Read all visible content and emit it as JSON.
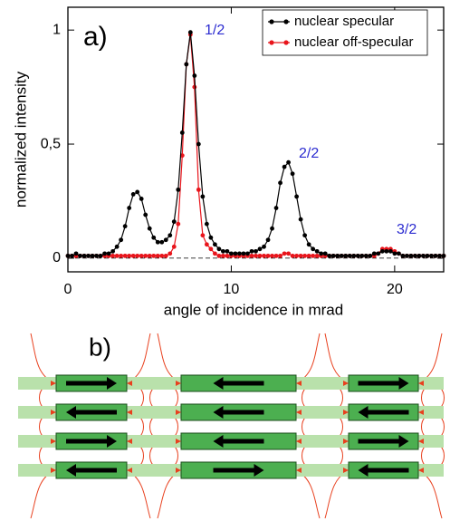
{
  "chart_data": {
    "type": "line",
    "panel_label": "a)",
    "x_label": "angle of incidence in mrad",
    "y_label": "normalized intensity",
    "xlim": [
      0,
      23
    ],
    "xticks": [
      0,
      10,
      20
    ],
    "ylim": [
      -0.06,
      1.1
    ],
    "yticks": [
      0,
      {
        "value": 0.5,
        "label": "0,5"
      },
      1
    ],
    "legend": "upper right",
    "annotations": [
      "1/2",
      "2/2",
      "3/2"
    ],
    "x": [
      0,
      0.25,
      0.5,
      0.75,
      1,
      1.25,
      1.5,
      1.75,
      2,
      2.25,
      2.5,
      2.75,
      3,
      3.25,
      3.5,
      3.75,
      4,
      4.25,
      4.5,
      4.75,
      5,
      5.25,
      5.5,
      5.75,
      6,
      6.25,
      6.5,
      6.75,
      7,
      7.25,
      7.5,
      7.75,
      8,
      8.25,
      8.5,
      8.75,
      9,
      9.25,
      9.5,
      9.75,
      10,
      10.25,
      10.5,
      10.75,
      11,
      11.25,
      11.5,
      11.75,
      12,
      12.25,
      12.5,
      12.75,
      13,
      13.25,
      13.5,
      13.75,
      14,
      14.25,
      14.5,
      14.75,
      15,
      15.25,
      15.5,
      15.75,
      16,
      16.25,
      16.5,
      16.75,
      17,
      17.25,
      17.5,
      17.75,
      18,
      18.25,
      18.5,
      18.75,
      19,
      19.25,
      19.5,
      19.75,
      20,
      20.25,
      20.5,
      20.75,
      21,
      21.25,
      21.5,
      21.75,
      22,
      22.25,
      22.5,
      22.75,
      23
    ],
    "series": [
      {
        "name": "nuclear specular",
        "color": "#000000",
        "values": [
          0.01,
          0.01,
          0.02,
          0.01,
          0.01,
          0.01,
          0.01,
          0.01,
          0.01,
          0.02,
          0.02,
          0.03,
          0.05,
          0.08,
          0.14,
          0.22,
          0.28,
          0.29,
          0.26,
          0.19,
          0.13,
          0.09,
          0.07,
          0.07,
          0.08,
          0.1,
          0.16,
          0.3,
          0.55,
          0.85,
          0.99,
          0.8,
          0.5,
          0.27,
          0.15,
          0.09,
          0.06,
          0.04,
          0.03,
          0.03,
          0.02,
          0.02,
          0.02,
          0.02,
          0.02,
          0.03,
          0.03,
          0.04,
          0.05,
          0.08,
          0.13,
          0.22,
          0.33,
          0.4,
          0.42,
          0.37,
          0.27,
          0.17,
          0.1,
          0.06,
          0.04,
          0.03,
          0.02,
          0.02,
          0.01,
          0.01,
          0.01,
          0.01,
          0.01,
          0.01,
          0.01,
          0.01,
          0.01,
          0.01,
          0.01,
          0.02,
          0.02,
          0.03,
          0.03,
          0.03,
          0.02,
          0.02,
          0.01,
          0.01,
          0.01,
          0.01,
          0.01,
          0.01,
          0.01,
          0.01,
          0.01,
          0.01,
          0.01
        ]
      },
      {
        "name": "nuclear off-specular",
        "color": "#e8141b",
        "values": [
          0.01,
          0.01,
          0.01,
          0.01,
          0.01,
          0.01,
          0.01,
          0.01,
          0.01,
          0.01,
          0.01,
          0.01,
          0.01,
          0.01,
          0.01,
          0.01,
          0.01,
          0.01,
          0.01,
          0.01,
          0.01,
          0.01,
          0.01,
          0.01,
          0.01,
          0.02,
          0.05,
          0.15,
          0.45,
          0.85,
          0.98,
          0.75,
          0.3,
          0.1,
          0.06,
          0.04,
          0.02,
          0.01,
          0.01,
          0.01,
          0.01,
          0.01,
          0.01,
          0.01,
          0.01,
          0.01,
          0.01,
          0.01,
          0.01,
          0.01,
          0.01,
          0.01,
          0.01,
          0.02,
          0.02,
          0.01,
          0.01,
          0.01,
          0.01,
          0.01,
          0.01,
          0.01,
          0.01,
          0.01,
          0.01,
          0.01,
          0.01,
          0.01,
          0.01,
          0.01,
          0.01,
          0.01,
          0.01,
          0.01,
          0.01,
          0.01,
          0.02,
          0.04,
          0.04,
          0.04,
          0.03,
          0.02,
          0.01,
          0.01,
          0.01,
          0.01,
          0.01,
          0.01,
          0.01,
          0.01,
          0.01,
          0.01,
          0.01
        ]
      }
    ]
  },
  "diagram": {
    "label": "b)"
  }
}
